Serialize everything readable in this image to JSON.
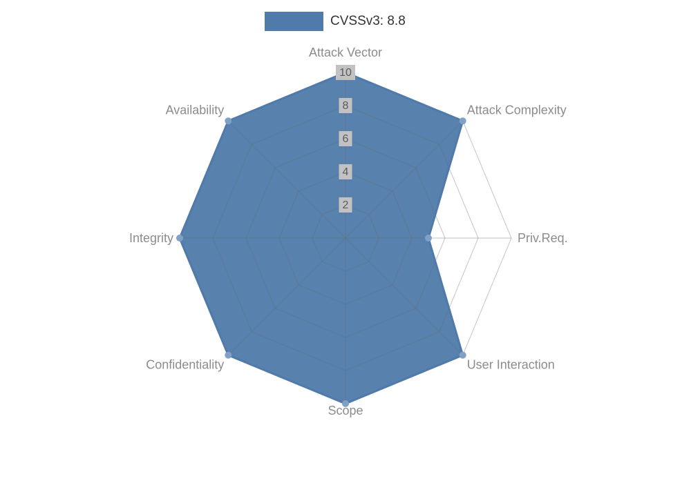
{
  "legend": {
    "label": "CVSSv3: 8.8"
  },
  "chart_data": {
    "type": "radar",
    "title": "CVSSv3: 8.8",
    "categories": [
      "Attack Vector",
      "Attack Complexity",
      "Priv.Req.",
      "User Interaction",
      "Scope",
      "Confidentiality",
      "Integrity",
      "Availability"
    ],
    "series": [
      {
        "name": "CVSSv3: 8.8",
        "values": [
          10,
          10,
          5,
          10,
          10,
          10,
          10,
          10
        ]
      }
    ],
    "rlim": [
      0,
      10
    ],
    "ticks": [
      2,
      4,
      6,
      8,
      10
    ],
    "grid": true,
    "legend_position": "top",
    "start_axis": "top",
    "direction": "clockwise",
    "colors": {
      "fill": "#4f7aa9",
      "fill_opacity": 0.95,
      "line": "#4f7aa9",
      "point": "#7fa1c5",
      "grid": "#646b75",
      "grid_opacity": 0.34,
      "axis_label": "#8c8c8c",
      "tick_text": "#5a5a5a",
      "tick_backdrop": "#c2c2c2"
    }
  }
}
